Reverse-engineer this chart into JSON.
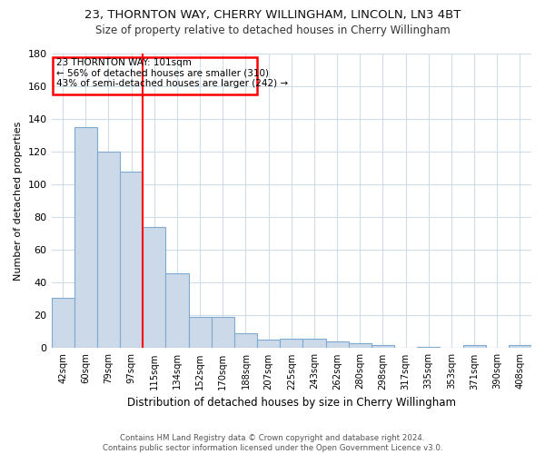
{
  "title1": "23, THORNTON WAY, CHERRY WILLINGHAM, LINCOLN, LN3 4BT",
  "title2": "Size of property relative to detached houses in Cherry Willingham",
  "xlabel": "Distribution of detached houses by size in Cherry Willingham",
  "ylabel": "Number of detached properties",
  "footnote": "Contains HM Land Registry data © Crown copyright and database right 2024.\nContains public sector information licensed under the Open Government Licence v3.0.",
  "categories": [
    "42sqm",
    "60sqm",
    "79sqm",
    "97sqm",
    "115sqm",
    "134sqm",
    "152sqm",
    "170sqm",
    "188sqm",
    "207sqm",
    "225sqm",
    "243sqm",
    "262sqm",
    "280sqm",
    "298sqm",
    "317sqm",
    "335sqm",
    "353sqm",
    "371sqm",
    "390sqm",
    "408sqm"
  ],
  "values": [
    31,
    135,
    120,
    108,
    74,
    46,
    19,
    19,
    9,
    5,
    6,
    6,
    4,
    3,
    2,
    0,
    1,
    0,
    2,
    0,
    2
  ],
  "bar_color": "#ccd9e8",
  "bar_edge_color": "#7faacf",
  "vline_color": "red",
  "annotation_text": "23 THORNTON WAY: 101sqm\n← 56% of detached houses are smaller (310)\n43% of semi-detached houses are larger (242) →",
  "annotation_box_color": "red",
  "ylim": [
    0,
    180
  ],
  "yticks": [
    0,
    20,
    40,
    60,
    80,
    100,
    120,
    140,
    160,
    180
  ],
  "background_color": "#ffffff",
  "plot_bg_color": "#ffffff",
  "grid_color": "#d0dce8"
}
